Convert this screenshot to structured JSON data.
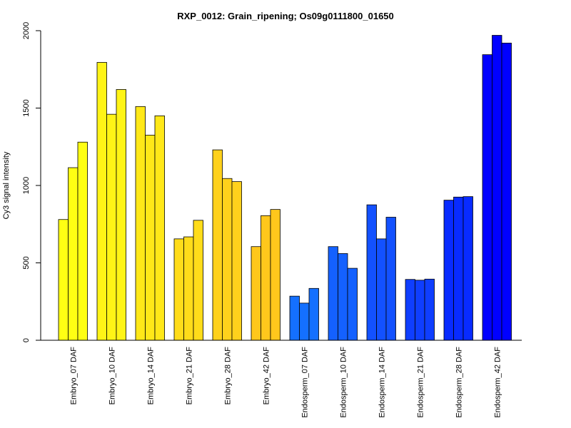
{
  "chart_data": {
    "type": "bar",
    "title": "RXP_0012: Grain_ripening; Os09g0111800_01650",
    "xlabel": "",
    "ylabel": "Cy3 signal intensity",
    "ylim": [
      0,
      2000
    ],
    "yticks": [
      0,
      500,
      1000,
      1500,
      2000
    ],
    "grid": false,
    "categories": [
      "Embryo_07 DAF",
      "Embryo_10 DAF",
      "Embryo_14 DAF",
      "Embryo_21 DAF",
      "Embryo_28 DAF",
      "Embryo_42 DAF",
      "Endosperm_07 DAF",
      "Endosperm_10 DAF",
      "Endosperm_14 DAF",
      "Endosperm_21 DAF",
      "Endosperm_28 DAF",
      "Endosperm_42 DAF"
    ],
    "replicates": [
      [
        780,
        1115,
        1280
      ],
      [
        1795,
        1460,
        1620
      ],
      [
        1510,
        1325,
        1450
      ],
      [
        655,
        668,
        775
      ],
      [
        1230,
        1045,
        1025
      ],
      [
        605,
        805,
        845
      ],
      [
        285,
        240,
        335
      ],
      [
        605,
        560,
        465
      ],
      [
        875,
        655,
        795
      ],
      [
        393,
        388,
        395
      ],
      [
        905,
        925,
        928
      ],
      [
        1845,
        1970,
        1920
      ]
    ],
    "colors": [
      "#ffff13",
      "#fff416",
      "#ffe818",
      "#ffdc1a",
      "#ffd11c",
      "#ffc71c",
      "#1470ff",
      "#1461ff",
      "#1351ff",
      "#0f3eff",
      "#082bff",
      "#0000ff"
    ]
  }
}
